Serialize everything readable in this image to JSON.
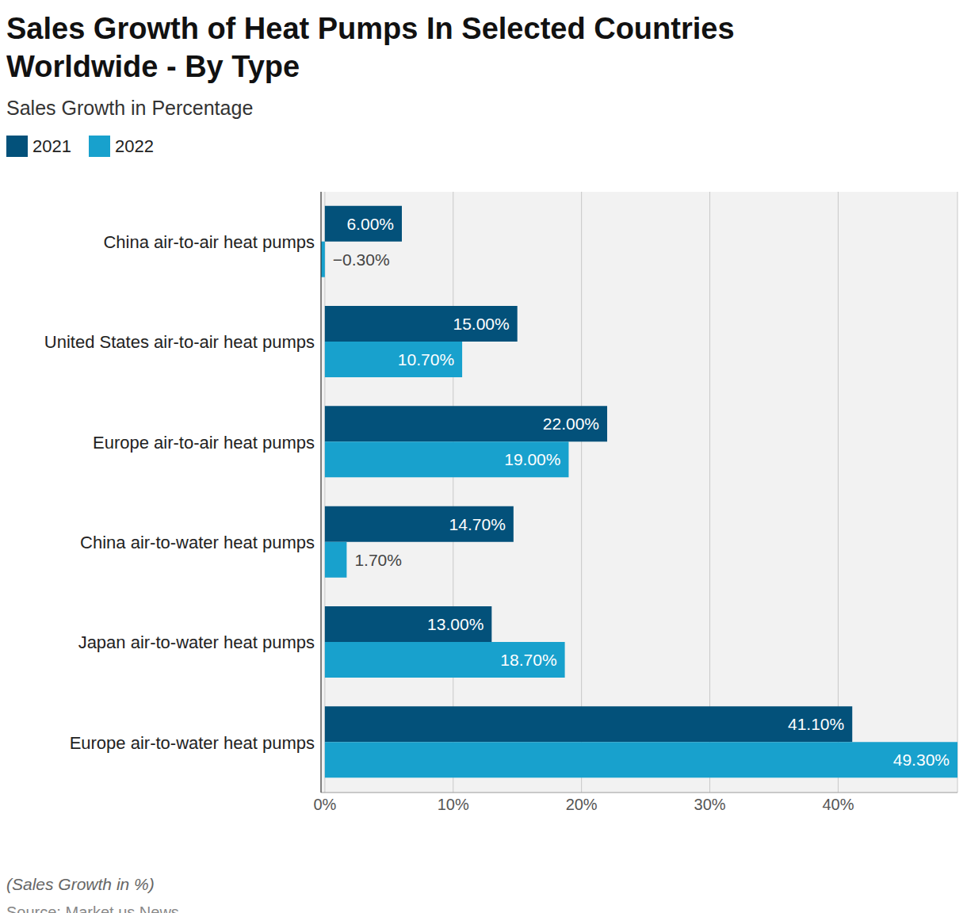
{
  "chart_data": {
    "type": "bar",
    "orientation": "horizontal",
    "title": "Sales Growth of Heat Pumps In Selected Countries Worldwide - By Type",
    "subtitle": "Sales Growth in Percentage",
    "categories": [
      "China air-to-air heat pumps",
      "United States air-to-air heat pumps",
      "Europe air-to-air heat pumps",
      "China air-to-water heat pumps",
      "Japan air-to-water heat pumps",
      "Europe air-to-water heat pumps"
    ],
    "series": [
      {
        "name": "2021",
        "color": "#03517a",
        "values": [
          6,
          15,
          22,
          14.7,
          13,
          41.1
        ],
        "value_labels": [
          "6.00%",
          "15.00%",
          "22.00%",
          "14.70%",
          "13.00%",
          "41.10%"
        ]
      },
      {
        "name": "2022",
        "color": "#18a1cd",
        "values": [
          -0.3,
          10.7,
          19,
          1.7,
          18.7,
          49.3
        ],
        "value_labels": [
          "−0.30%",
          "10.70%",
          "19.00%",
          "1.70%",
          "18.70%",
          "49.30%"
        ]
      }
    ],
    "xlim": [
      -0.3,
      49.3
    ],
    "xticks": [
      {
        "value": 0,
        "label": "0%"
      },
      {
        "value": 10,
        "label": "10%"
      },
      {
        "value": 20,
        "label": "20%"
      },
      {
        "value": 30,
        "label": "30%"
      },
      {
        "value": 40,
        "label": "40%"
      }
    ],
    "grid": true,
    "legend": "top-left",
    "data_labels": true,
    "note": "(Sales Growth in %)",
    "source": "Source: Market.us News"
  }
}
